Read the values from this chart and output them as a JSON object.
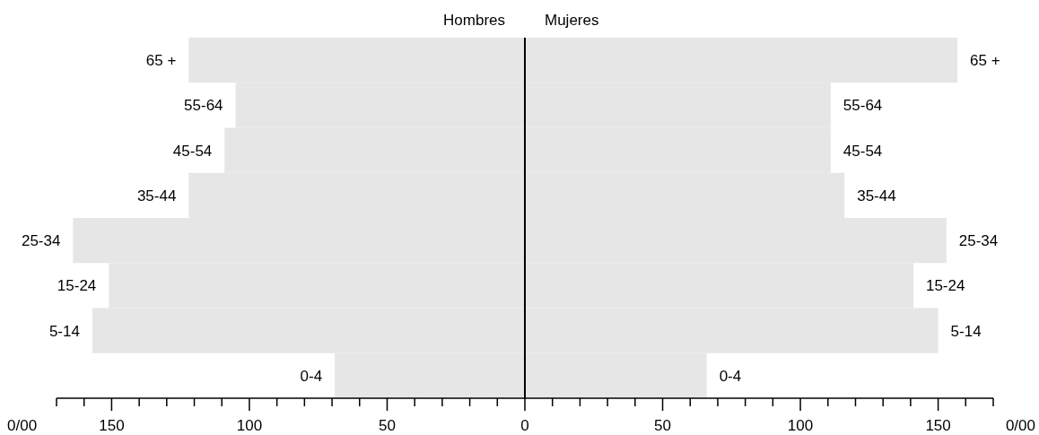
{
  "chart_data": {
    "type": "bar",
    "orientation": "horizontal",
    "stacked": true,
    "xlabel": "0/00",
    "legend": "top",
    "categories": [
      "65 +",
      "55-64",
      "45-54",
      "35-44",
      "25-34",
      "15-24",
      "5-14",
      "0-4"
    ],
    "series": [
      {
        "name": "Hombres",
        "color": "#e6e6e6",
        "values": [
          -122,
          -105,
          -109,
          -122,
          -164,
          -151,
          -157,
          -69
        ]
      },
      {
        "name": "Mujeres",
        "color": "#e6e6e6",
        "values": [
          157,
          111,
          111,
          116,
          153,
          141,
          150,
          66
        ]
      }
    ],
    "xlim": [
      -170,
      170
    ],
    "xticks": [
      {
        "value": -170,
        "label": null
      },
      {
        "value": -160,
        "label": null
      },
      {
        "value": -150,
        "label": "150"
      },
      {
        "value": -140,
        "label": null
      },
      {
        "value": -130,
        "label": null
      },
      {
        "value": -120,
        "label": null
      },
      {
        "value": -110,
        "label": null
      },
      {
        "value": -100,
        "label": "100"
      },
      {
        "value": -90,
        "label": null
      },
      {
        "value": -80,
        "label": null
      },
      {
        "value": -70,
        "label": null
      },
      {
        "value": -60,
        "label": null
      },
      {
        "value": -50,
        "label": "50"
      },
      {
        "value": -40,
        "label": null
      },
      {
        "value": -30,
        "label": null
      },
      {
        "value": -20,
        "label": null
      },
      {
        "value": -10,
        "label": null
      },
      0,
      {
        "value": 10,
        "label": null
      },
      {
        "value": 20,
        "label": null
      },
      {
        "value": 30,
        "label": null
      },
      {
        "value": 40,
        "label": null
      },
      50,
      {
        "value": 60,
        "label": null
      },
      {
        "value": 70,
        "label": null
      },
      {
        "value": 80,
        "label": null
      },
      {
        "value": 90,
        "label": null
      },
      100,
      {
        "value": 110,
        "label": null
      },
      {
        "value": 120,
        "label": null
      },
      {
        "value": 130,
        "label": null
      },
      {
        "value": 140,
        "label": null
      },
      150,
      {
        "value": 160,
        "label": null
      },
      {
        "value": 170,
        "label": null
      }
    ],
    "ref_lines": [
      {
        "axis": "x",
        "value": 0,
        "color": "#000000"
      }
    ]
  }
}
